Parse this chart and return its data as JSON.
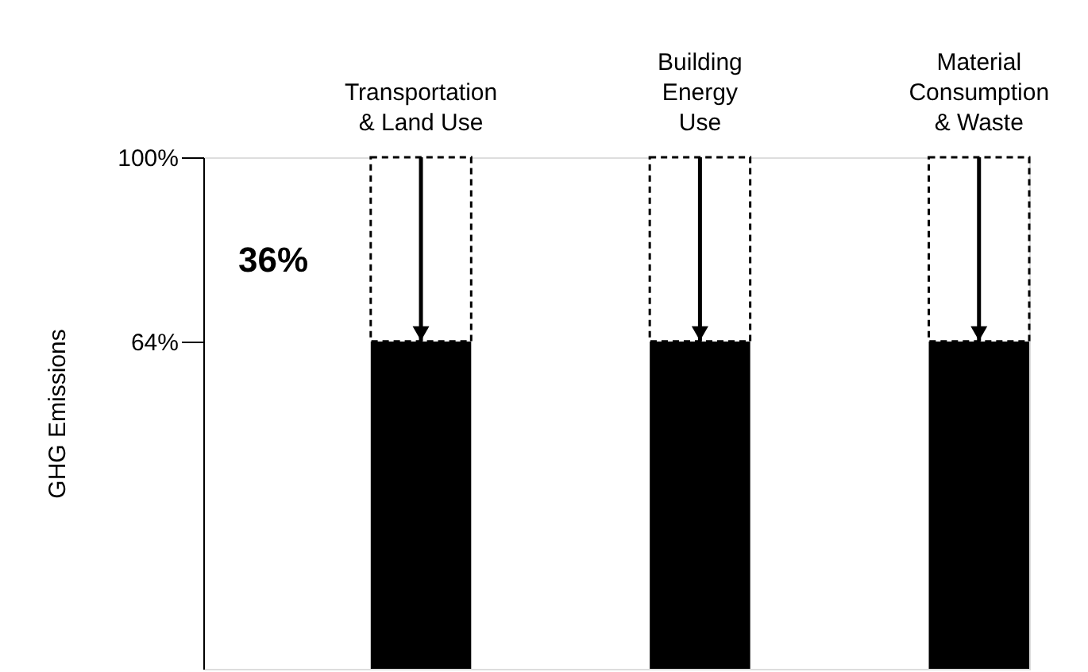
{
  "chart_data": {
    "type": "bar",
    "ylabel": "GHG Emissions",
    "categories": [
      "Transportation\n& Land Use",
      "Building\nEnergy\nUse",
      "Material\nConsumption\n& Waste"
    ],
    "stacked": true,
    "series": [
      {
        "color": "#000000",
        "values": [
          64,
          64,
          64
        ]
      },
      {
        "color": "#000000",
        "values": [
          36,
          36,
          36
        ],
        "line_style": "dashed"
      }
    ],
    "ylim": [
      0,
      100
    ],
    "yticks": [
      {
        "value": 64,
        "label": "64%"
      },
      {
        "value": 100,
        "label": "100%"
      }
    ],
    "annotations": [
      "36%"
    ],
    "grid": false,
    "legend": false
  }
}
